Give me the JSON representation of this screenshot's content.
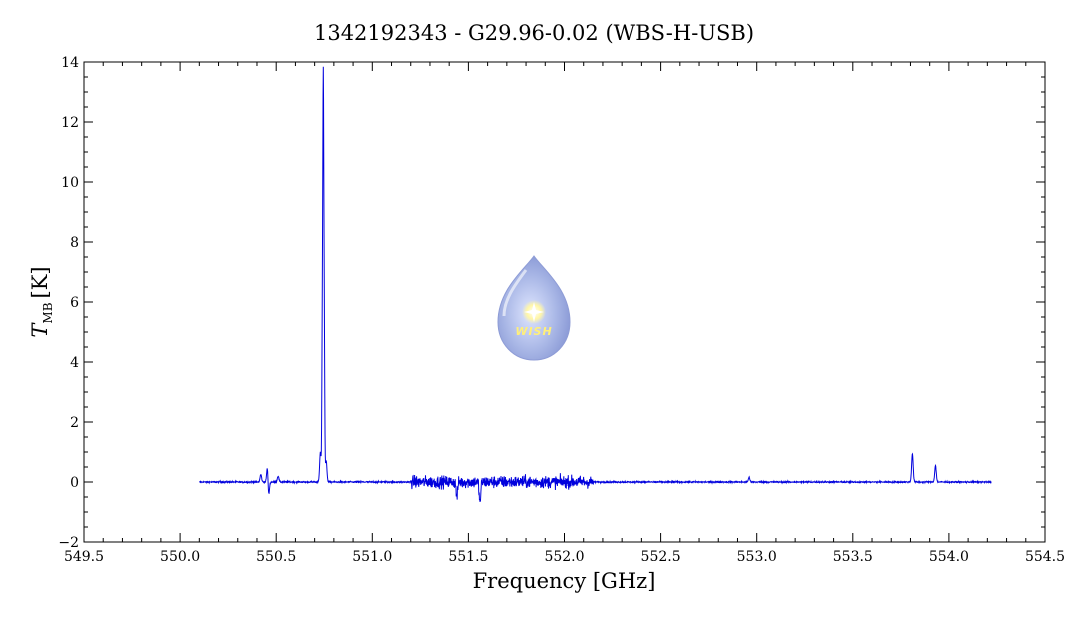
{
  "chart_data": {
    "type": "line",
    "title": "1342192343 - G29.96-0.02 (WBS-H-USB)",
    "xlabel": "Frequency [GHz]",
    "ylabel_main": "T",
    "ylabel_sub": "MB",
    "ylabel_unit": "[K]",
    "xlim": [
      549.5,
      554.5
    ],
    "ylim": [
      -2,
      14
    ],
    "x_ticks": [
      549.5,
      550.0,
      550.5,
      551.0,
      551.5,
      552.0,
      552.5,
      553.0,
      553.5,
      554.0,
      554.5
    ],
    "x_tick_labels": [
      "549.5",
      "550.0",
      "550.5",
      "551.0",
      "551.5",
      "552.0",
      "552.5",
      "553.0",
      "553.5",
      "554.0",
      "554.5"
    ],
    "y_ticks": [
      -2,
      0,
      2,
      4,
      6,
      8,
      10,
      12,
      14
    ],
    "y_tick_labels": [
      "−2",
      "0",
      "2",
      "4",
      "6",
      "8",
      "10",
      "12",
      "14"
    ],
    "grid": false,
    "series": [
      {
        "color": "#0000dd",
        "x_range": [
          550.1,
          554.22
        ],
        "baseline": 0.0,
        "noisy_regions": [
          {
            "x": [
              551.2,
              552.15
            ],
            "amplitude": 0.35
          }
        ],
        "features": [
          {
            "x": 550.42,
            "peak": 0.25
          },
          {
            "x": 550.455,
            "peak": 0.65
          },
          {
            "x": 550.46,
            "peak": -0.6
          },
          {
            "x": 550.51,
            "peak": 0.2
          },
          {
            "x": 550.73,
            "peak": 1.0
          },
          {
            "x": 550.74,
            "peak": 5.0
          },
          {
            "x": 550.745,
            "peak": 12.5
          },
          {
            "x": 550.75,
            "peak": 5.0
          },
          {
            "x": 550.76,
            "peak": 0.7
          },
          {
            "x": 551.44,
            "peak": -0.5
          },
          {
            "x": 551.56,
            "peak": -0.7
          },
          {
            "x": 552.96,
            "peak": 0.15
          },
          {
            "x": 553.81,
            "peak": 0.95
          },
          {
            "x": 553.93,
            "peak": 0.55
          }
        ]
      }
    ]
  },
  "logo": {
    "icon": "wish-droplet-logo",
    "text": "WISH"
  }
}
